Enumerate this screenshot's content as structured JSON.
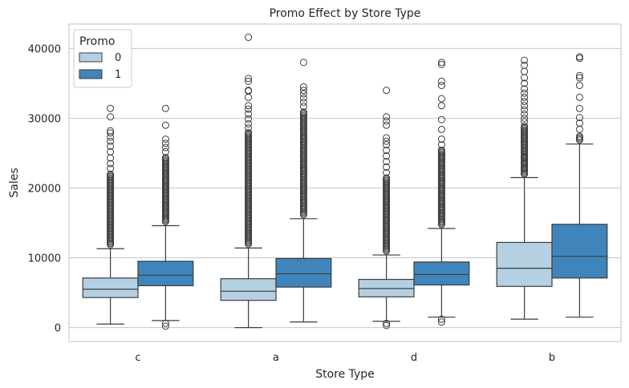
{
  "chart_data": {
    "type": "box",
    "title": "Promo Effect by Store Type",
    "xlabel": "Store Type",
    "ylabel": "Sales",
    "categories": [
      "c",
      "a",
      "d",
      "b"
    ],
    "ylim": [
      -2000,
      43500
    ],
    "yticks": [
      0,
      10000,
      20000,
      30000,
      40000
    ],
    "grid": "horizontal",
    "legend": {
      "title": "Promo",
      "placement": "top-left",
      "entries": [
        {
          "label": "0",
          "color": "#b4d0e2"
        },
        {
          "label": "1",
          "color": "#3f85bc"
        }
      ]
    },
    "series": [
      {
        "name": "0",
        "color": "#b4d0e2",
        "boxes": [
          {
            "whisker_low": 500,
            "q1": 4300,
            "median": 5500,
            "q3": 7100,
            "whisker_high": 11300,
            "dense_to": 22000,
            "outliers": [
              22800,
              23500,
              24300,
              25200,
              26000,
              26700,
              27300,
              27900,
              28200,
              30200,
              31400
            ]
          },
          {
            "whisker_low": 0,
            "q1": 3900,
            "median": 5200,
            "q3": 7000,
            "whisker_high": 11400,
            "dense_to": 28000,
            "outliers": [
              28600,
              29200,
              29900,
              30600,
              31300,
              31800,
              33000,
              33900,
              34000,
              35300,
              35700,
              41600
            ]
          },
          {
            "whisker_low": 900,
            "q1": 4400,
            "median": 5600,
            "q3": 6900,
            "whisker_high": 10400,
            "dense_to": 21500,
            "outliers": [
              22200,
              23000,
              23800,
              24600,
              25400,
              26200,
              26700,
              27200,
              29000,
              29600,
              30200,
              34000,
              300,
              600
            ]
          },
          {
            "whisker_low": 1200,
            "q1": 5900,
            "median": 8500,
            "q3": 12200,
            "whisker_high": 21500,
            "dense_to": 29000,
            "outliers": [
              22000,
              22800,
              23600,
              24400,
              29500,
              30000,
              30600,
              31200,
              31800,
              32400,
              33000,
              33600,
              34200,
              35000,
              35800,
              36700,
              37600,
              38300
            ]
          }
        ]
      },
      {
        "name": "1",
        "color": "#3f85bc",
        "boxes": [
          {
            "whisker_low": 1000,
            "q1": 6000,
            "median": 7500,
            "q3": 9500,
            "whisker_high": 14600,
            "dense_to": 24500,
            "outliers": [
              25200,
              25800,
              26400,
              27000,
              29000,
              31400,
              200,
              600
            ]
          },
          {
            "whisker_low": 800,
            "q1": 5800,
            "median": 7700,
            "q3": 9900,
            "whisker_high": 15600,
            "dense_to": 31000,
            "outliers": [
              31700,
              32300,
              32900,
              33500,
              34000,
              34500,
              38000
            ]
          },
          {
            "whisker_low": 1500,
            "q1": 6100,
            "median": 7600,
            "q3": 9400,
            "whisker_high": 14200,
            "dense_to": 25500,
            "outliers": [
              26200,
              27000,
              28400,
              29800,
              31800,
              32800,
              34700,
              35300,
              37700,
              38000,
              800,
              1200
            ]
          },
          {
            "whisker_low": 1500,
            "q1": 7100,
            "median": 10200,
            "q3": 14800,
            "whisker_high": 26300,
            "dense_to": 27600,
            "outliers": [
              28400,
              29300,
              30100,
              31400,
              33000,
              34700,
              35800,
              36100,
              38600,
              38800
            ]
          }
        ]
      }
    ]
  }
}
